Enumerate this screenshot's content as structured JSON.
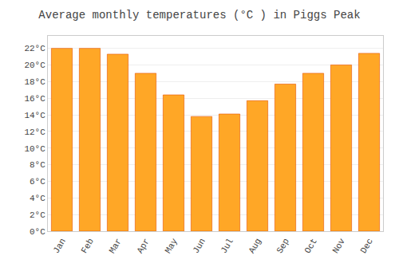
{
  "chart_data": {
    "type": "bar",
    "title": "Average monthly temperatures (°C ) in Piggs Peak",
    "categories": [
      "Jan",
      "Feb",
      "Mar",
      "Apr",
      "May",
      "Jun",
      "Jul",
      "Aug",
      "Sep",
      "Oct",
      "Nov",
      "Dec"
    ],
    "values": [
      22.0,
      22.0,
      21.3,
      19.0,
      16.4,
      13.8,
      14.1,
      15.7,
      17.7,
      19.0,
      20.0,
      21.4
    ],
    "color": "#FFA726",
    "ylim": [
      0,
      23.5
    ],
    "yticks": [
      {
        "value": 0,
        "label": "0°C"
      },
      {
        "value": 2,
        "label": "2°C"
      },
      {
        "value": 4,
        "label": "4°C"
      },
      {
        "value": 6,
        "label": "6°C"
      },
      {
        "value": 8,
        "label": "8°C"
      },
      {
        "value": 10,
        "label": "10°C"
      },
      {
        "value": 12,
        "label": "12°C"
      },
      {
        "value": 14,
        "label": "14°C"
      },
      {
        "value": 16,
        "label": "16°C"
      },
      {
        "value": 18,
        "label": "18°C"
      },
      {
        "value": 20,
        "label": "20°C"
      },
      {
        "value": 22,
        "label": "22°C"
      }
    ],
    "grid": true
  }
}
